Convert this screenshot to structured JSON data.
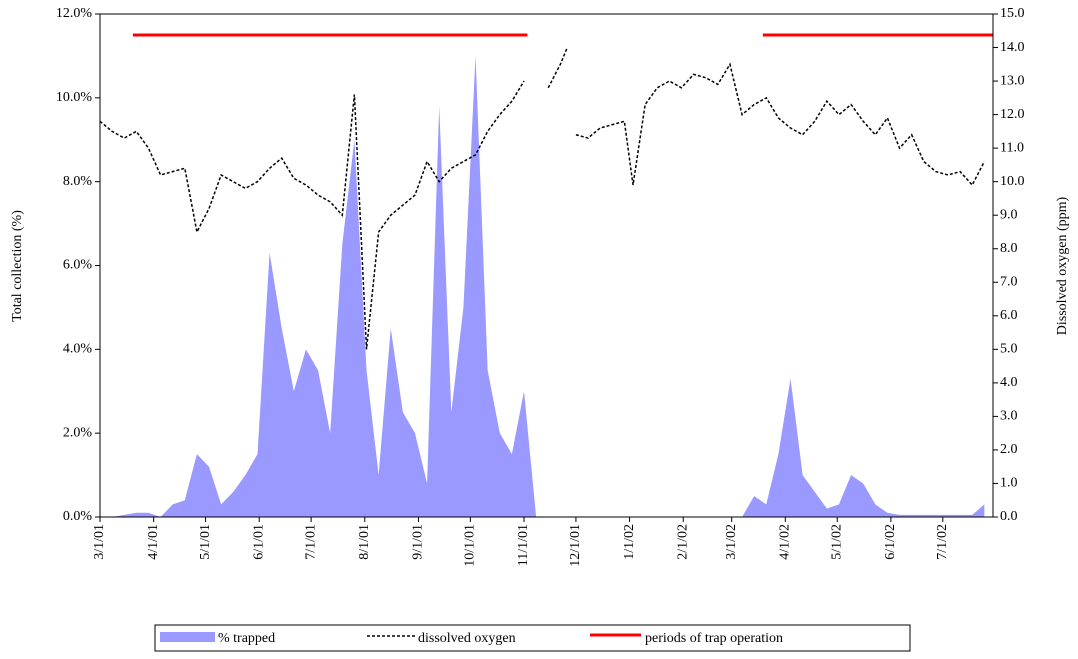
{
  "chart_data": {
    "type": "area-line",
    "y_label": "Total collection (%)",
    "y2_label": "Dissolved oxygen (ppm)",
    "xlim": [
      "3/1/01",
      "7/30/02"
    ],
    "xticks": [
      "3/1/01",
      "4/1/01",
      "5/1/01",
      "6/1/01",
      "7/1/01",
      "8/1/01",
      "9/1/01",
      "10/1/01",
      "11/1/01",
      "12/1/01",
      "1/1/02",
      "2/1/02",
      "3/1/02",
      "4/1/02",
      "5/1/02",
      "6/1/02",
      "7/1/02"
    ],
    "ylim": [
      0,
      12
    ],
    "yticks": [
      {
        "value": 0,
        "label": "0.0%"
      },
      {
        "value": 2,
        "label": "2.0%"
      },
      {
        "value": 4,
        "label": "4.0%"
      },
      {
        "value": 6,
        "label": "6.0%"
      },
      {
        "value": 8,
        "label": "8.0%"
      },
      {
        "value": 10,
        "label": "10.0%"
      },
      {
        "value": 12,
        "label": "12.0%"
      }
    ],
    "y2lim": [
      0,
      15
    ],
    "y2ticks": [
      {
        "value": 0,
        "label": "0.0"
      },
      {
        "value": 1,
        "label": "1.0"
      },
      {
        "value": 2,
        "label": "2.0"
      },
      {
        "value": 3,
        "label": "3.0"
      },
      {
        "value": 4,
        "label": "4.0"
      },
      {
        "value": 5,
        "label": "5.0"
      },
      {
        "value": 6,
        "label": "6.0"
      },
      {
        "value": 7,
        "label": "7.0"
      },
      {
        "value": 8,
        "label": "8.0"
      },
      {
        "value": 9,
        "label": "9.0"
      },
      {
        "value": 10,
        "label": "10.0"
      },
      {
        "value": 11,
        "label": "11.0"
      },
      {
        "value": 12,
        "label": "12.0"
      },
      {
        "value": 13,
        "label": "13.0"
      },
      {
        "value": 14,
        "label": "14.0"
      },
      {
        "value": 15,
        "label": "15.0"
      }
    ],
    "x": [
      "3/1/01",
      "3/8/01",
      "3/15/01",
      "3/22/01",
      "3/29/01",
      "4/5/01",
      "4/12/01",
      "4/19/01",
      "4/26/01",
      "5/3/01",
      "5/10/01",
      "5/17/01",
      "5/24/01",
      "5/31/01",
      "6/7/01",
      "6/14/01",
      "6/21/01",
      "6/28/01",
      "7/5/01",
      "7/12/01",
      "7/19/01",
      "7/26/01",
      "8/2/01",
      "8/9/01",
      "8/16/01",
      "8/23/01",
      "8/30/01",
      "9/6/01",
      "9/13/01",
      "9/20/01",
      "9/27/01",
      "10/4/01",
      "10/11/01",
      "10/18/01",
      "10/25/01",
      "11/1/01",
      "11/8/01",
      "11/15/01",
      "11/22/01",
      "11/26/01",
      "11/29/01",
      "12/1/01",
      "12/8/01",
      "12/15/01",
      "12/22/01",
      "12/29/01",
      "1/3/02",
      "1/10/02",
      "1/17/02",
      "1/24/02",
      "1/31/02",
      "2/7/02",
      "2/14/02",
      "2/21/02",
      "2/28/02",
      "3/7/02",
      "3/14/02",
      "3/21/02",
      "3/28/02",
      "4/4/02",
      "4/11/02",
      "4/18/02",
      "4/25/02",
      "5/2/02",
      "5/9/02",
      "5/16/02",
      "5/23/02",
      "5/30/02",
      "6/6/02",
      "6/13/02",
      "6/20/02",
      "6/27/02",
      "7/4/02",
      "7/11/02",
      "7/18/02",
      "7/25/02"
    ],
    "series": [
      {
        "name": "% trapped",
        "color": "#9999ff",
        "values": [
          0,
          0,
          0.05,
          0.1,
          0.1,
          0,
          0.3,
          0.4,
          1.5,
          1.2,
          0.3,
          0.6,
          1.0,
          1.5,
          6.3,
          4.5,
          3.0,
          4.0,
          3.5,
          2.0,
          6.5,
          9.0,
          3.5,
          1.0,
          4.5,
          2.5,
          2.0,
          0.8,
          9.8,
          2.5,
          5.0,
          11.0,
          3.5,
          2.0,
          1.5,
          3.0,
          0,
          0,
          0,
          0,
          0,
          0,
          0,
          0,
          0,
          0,
          0,
          0,
          0,
          0,
          0,
          0,
          0,
          0,
          0,
          0,
          0.5,
          0.3,
          1.5,
          3.3,
          1.0,
          0.6,
          0.2,
          0.3,
          1.0,
          0.8,
          0.3,
          0.1,
          0.05,
          0.05,
          0.05,
          0.05,
          0.05,
          0.05,
          0.05,
          0.3
        ]
      },
      {
        "name": "dissolved oxygen",
        "color": "#000000",
        "axis": "y2",
        "values": [
          11.8,
          11.5,
          11.3,
          11.5,
          11.0,
          10.2,
          10.3,
          10.4,
          8.5,
          9.2,
          10.2,
          10.0,
          9.8,
          10.0,
          10.4,
          10.7,
          10.1,
          9.9,
          9.6,
          9.4,
          9.0,
          12.6,
          5.0,
          8.5,
          9.0,
          9.3,
          9.6,
          10.6,
          10.0,
          10.4,
          10.6,
          10.8,
          11.5,
          12.0,
          12.4,
          13.0,
          null,
          12.8,
          13.5,
          14.0,
          null,
          11.4,
          11.3,
          11.6,
          11.7,
          11.8,
          9.9,
          12.3,
          12.8,
          13.0,
          12.8,
          13.2,
          13.1,
          12.9,
          13.5,
          12.0,
          12.3,
          12.5,
          11.9,
          11.6,
          11.4,
          11.8,
          12.4,
          12.0,
          12.3,
          11.8,
          11.4,
          11.9,
          11.0,
          11.4,
          10.6,
          10.3,
          10.2,
          10.3,
          9.9,
          10.6
        ]
      },
      {
        "name": "periods of trap operation",
        "color": "#ff0000",
        "level": 11.5,
        "periods": [
          [
            "3/20/01",
            "11/3/01"
          ],
          [
            "3/19/02",
            "7/30/02"
          ]
        ]
      }
    ]
  }
}
